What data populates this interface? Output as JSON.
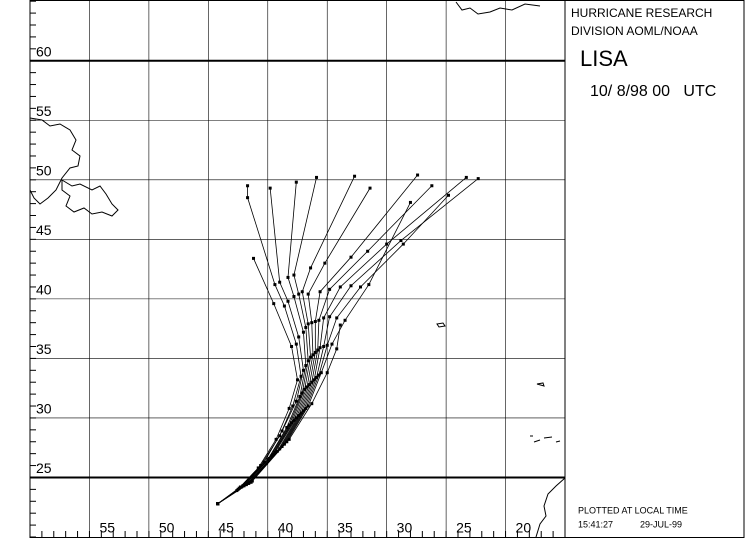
{
  "chart_data": {
    "type": "track-map",
    "header": [
      "HURRICANE RESEARCH",
      "DIVISION AOML/NOAA"
    ],
    "storm": "LISA",
    "date": "10/ 8/98 00   UTC",
    "footer": [
      "PLOTTED AT LOCAL TIME",
      "15:41:27",
      "29-JUL-99"
    ],
    "xlim": [
      60,
      15
    ],
    "ylim": [
      20,
      65.1
    ],
    "xticks": [
      55,
      50,
      45,
      40,
      35,
      30,
      25,
      20
    ],
    "yticks": [
      25,
      30,
      35,
      40,
      45,
      50,
      55,
      60
    ],
    "heavy_lat": [
      25,
      60
    ],
    "tracks": [
      {
        "lon": [
          44.2,
          42.5,
          40.6,
          39.0,
          37.9,
          37.2,
          37.6,
          38.6,
          39.4,
          41.7,
          41.7
        ],
        "lat": [
          22.8,
          24.0,
          26.0,
          28.5,
          31.0,
          33.5,
          36.2,
          39.4,
          41.2,
          48.5,
          49.5
        ]
      },
      {
        "lon": [
          44.2,
          42.4,
          40.3,
          38.8,
          37.6,
          37.0,
          37.4,
          38.3,
          39.0,
          39.8
        ],
        "lat": [
          22.8,
          24.1,
          26.3,
          28.9,
          31.4,
          34.0,
          36.8,
          39.8,
          41.4,
          49.3
        ]
      },
      {
        "lon": [
          44.2,
          42.3,
          40.0,
          38.4,
          37.3,
          36.8,
          37.0,
          37.8,
          38.3,
          37.6
        ],
        "lat": [
          22.8,
          24.2,
          26.5,
          29.2,
          31.8,
          34.4,
          37.2,
          40.2,
          41.8,
          49.8
        ]
      },
      {
        "lon": [
          44.2,
          42.2,
          39.9,
          38.2,
          37.1,
          36.6,
          36.8,
          37.4,
          37.8,
          35.9
        ],
        "lat": [
          22.8,
          24.2,
          26.6,
          29.4,
          32.1,
          34.8,
          37.6,
          40.4,
          42.0,
          50.2
        ]
      },
      {
        "lon": [
          44.2,
          42.1,
          39.7,
          38.0,
          36.9,
          36.4,
          36.6,
          37.1,
          36.4,
          32.7
        ],
        "lat": [
          22.8,
          24.3,
          26.8,
          29.6,
          32.4,
          35.1,
          37.9,
          40.6,
          42.6,
          50.3
        ]
      },
      {
        "lon": [
          44.2,
          42.0,
          39.6,
          37.8,
          36.7,
          36.2,
          36.3,
          36.6,
          35.2,
          31.4
        ],
        "lat": [
          22.8,
          24.3,
          26.9,
          29.8,
          32.6,
          35.3,
          38.0,
          40.4,
          43.0,
          49.3
        ]
      },
      {
        "lon": [
          44.2,
          41.9,
          39.4,
          37.6,
          36.5,
          36.0,
          36.0,
          35.6,
          33.0,
          27.4
        ],
        "lat": [
          22.8,
          24.4,
          27.1,
          30.0,
          32.8,
          35.5,
          38.1,
          40.6,
          43.5,
          50.4
        ]
      },
      {
        "lon": [
          44.2,
          41.8,
          39.2,
          37.4,
          36.3,
          35.8,
          35.7,
          34.8,
          31.6,
          26.2
        ],
        "lat": [
          22.8,
          24.4,
          27.2,
          30.2,
          33.0,
          35.7,
          38.2,
          40.8,
          44.0,
          49.5
        ]
      },
      {
        "lon": [
          44.2,
          41.7,
          39.0,
          37.2,
          36.1,
          35.6,
          35.3,
          33.9,
          30.0,
          23.3
        ],
        "lat": [
          22.8,
          24.5,
          27.4,
          30.4,
          33.2,
          35.9,
          38.4,
          41.0,
          44.6,
          50.2
        ]
      },
      {
        "lon": [
          44.2,
          41.6,
          38.8,
          37.0,
          35.9,
          35.3,
          34.8,
          33.0,
          28.8,
          22.3
        ],
        "lat": [
          22.8,
          24.5,
          27.6,
          30.6,
          33.4,
          36.0,
          38.5,
          41.1,
          44.9,
          50.1
        ]
      },
      {
        "lon": [
          44.2,
          41.5,
          38.6,
          36.8,
          35.7,
          35.0,
          34.2,
          32.2,
          28.6,
          24.8
        ],
        "lat": [
          22.8,
          24.6,
          27.8,
          30.8,
          33.6,
          36.1,
          38.4,
          41.0,
          44.6,
          48.7
        ]
      },
      {
        "lon": [
          44.2,
          41.4,
          38.4,
          36.6,
          35.5,
          34.6,
          33.5,
          31.5,
          28.0
        ],
        "lat": [
          22.8,
          24.6,
          28.0,
          31.0,
          33.8,
          36.2,
          38.2,
          41.2,
          48.1
        ]
      },
      {
        "lon": [
          44.2,
          42.6,
          40.8,
          39.3,
          38.2,
          37.5,
          38.0,
          39.5,
          41.2
        ],
        "lat": [
          22.8,
          23.9,
          25.8,
          28.2,
          30.8,
          33.2,
          36.0,
          39.6,
          43.4
        ]
      },
      {
        "lon": [
          44.2,
          41.3,
          38.2,
          36.3,
          35.0,
          34.2,
          33.9
        ],
        "lat": [
          22.8,
          24.7,
          28.2,
          31.2,
          33.8,
          35.8,
          37.8
        ]
      }
    ]
  }
}
